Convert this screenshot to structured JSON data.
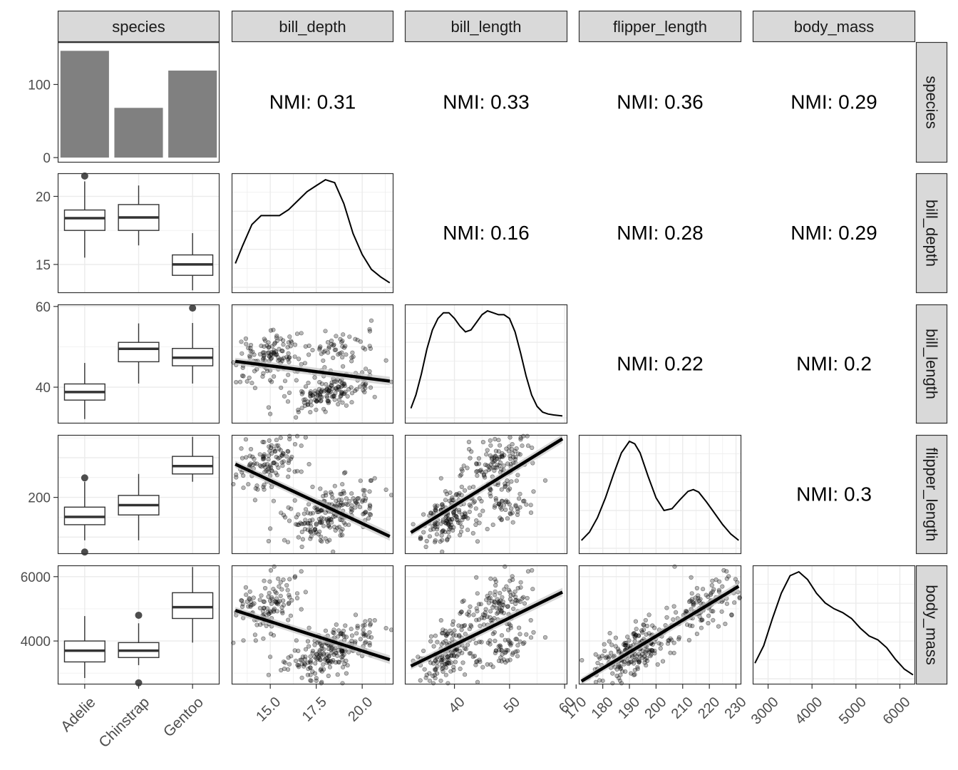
{
  "chart_data": {
    "type": "pairs_matrix",
    "variables": [
      "species",
      "bill_depth",
      "bill_length",
      "flipper_length",
      "body_mass"
    ],
    "species_counts": {
      "type": "bar",
      "categories": [
        "Adelie",
        "Chinstrap",
        "Gentoo"
      ],
      "values": [
        146,
        68,
        119
      ],
      "ylim": [
        0,
        158
      ],
      "yticks": [
        0,
        100
      ]
    },
    "axes": {
      "bill_depth": {
        "range": [
          12.9,
          21.7
        ],
        "ticks": [
          15.0,
          17.5,
          20.0
        ],
        "tick_labels": [
          "15.0",
          "17.5",
          "20.0"
        ],
        "row_ticks": [
          15,
          20
        ],
        "row_tick_labels": [
          "15",
          "20"
        ]
      },
      "bill_length": {
        "range": [
          31.0,
          60.5
        ],
        "ticks": [
          40,
          50,
          60
        ],
        "tick_labels": [
          "40",
          "50",
          "60"
        ],
        "row_ticks": [
          40,
          60
        ],
        "row_tick_labels": [
          "40",
          "60"
        ]
      },
      "flipper_length": {
        "range": [
          171,
          232
        ],
        "ticks": [
          170,
          180,
          190,
          200,
          210,
          220,
          230
        ],
        "tick_labels": [
          "170",
          "180",
          "190",
          "200",
          "210",
          "220",
          "230"
        ],
        "row_ticks": [
          200
        ],
        "row_tick_labels": [
          "200"
        ]
      },
      "body_mass": {
        "range": [
          2650,
          6350
        ],
        "ticks": [
          3000,
          4000,
          5000,
          6000
        ],
        "tick_labels": [
          "3000",
          "4000",
          "5000",
          "6000"
        ],
        "row_ticks": [
          4000,
          6000
        ],
        "row_tick_labels": [
          "4000",
          "6000"
        ]
      }
    },
    "boxplots": {
      "bill_depth": [
        {
          "species": "Adelie",
          "min": 15.5,
          "q1": 17.5,
          "median": 18.4,
          "q3": 19.0,
          "max": 21.1,
          "outliers": [
            21.5
          ]
        },
        {
          "species": "Chinstrap",
          "min": 16.4,
          "q1": 17.5,
          "median": 18.45,
          "q3": 19.4,
          "max": 20.8,
          "outliers": []
        },
        {
          "species": "Gentoo",
          "min": 13.1,
          "q1": 14.2,
          "median": 15.0,
          "q3": 15.7,
          "max": 17.3,
          "outliers": []
        }
      ],
      "bill_length": [
        {
          "species": "Adelie",
          "min": 32.1,
          "q1": 36.8,
          "median": 38.8,
          "q3": 40.8,
          "max": 46.0,
          "outliers": []
        },
        {
          "species": "Chinstrap",
          "min": 40.9,
          "q1": 46.3,
          "median": 49.5,
          "q3": 51.1,
          "max": 55.8,
          "outliers": []
        },
        {
          "species": "Gentoo",
          "min": 40.9,
          "q1": 45.3,
          "median": 47.3,
          "q3": 49.6,
          "max": 55.9,
          "outliers": [
            59.6
          ]
        }
      ],
      "flipper_length": [
        {
          "species": "Adelie",
          "min": 178,
          "q1": 186,
          "median": 190,
          "q3": 195,
          "max": 208,
          "outliers": [
            210,
            172
          ]
        },
        {
          "species": "Chinstrap",
          "min": 178,
          "q1": 191,
          "median": 196,
          "q3": 201,
          "max": 212,
          "outliers": []
        },
        {
          "species": "Gentoo",
          "min": 208,
          "q1": 212,
          "median": 216,
          "q3": 221,
          "max": 231,
          "outliers": []
        }
      ],
      "body_mass": [
        {
          "species": "Adelie",
          "min": 2850,
          "q1": 3350,
          "median": 3700,
          "q3": 4000,
          "max": 4775,
          "outliers": []
        },
        {
          "species": "Chinstrap",
          "min": 3250,
          "q1": 3487,
          "median": 3700,
          "q3": 3950,
          "max": 4550,
          "outliers": [
            4800,
            2700
          ]
        },
        {
          "species": "Gentoo",
          "min": 3950,
          "q1": 4700,
          "median": 5050,
          "q3": 5500,
          "max": 6300,
          "outliers": []
        }
      ]
    },
    "densities": {
      "bill_depth": {
        "x": [
          13.1,
          13.5,
          14.0,
          14.5,
          15.0,
          15.5,
          16.0,
          16.5,
          17.0,
          17.5,
          18.0,
          18.5,
          19.0,
          19.5,
          20.0,
          20.5,
          21.0,
          21.5
        ],
        "y": [
          0.08,
          0.14,
          0.21,
          0.24,
          0.24,
          0.24,
          0.26,
          0.29,
          0.32,
          0.34,
          0.36,
          0.35,
          0.28,
          0.18,
          0.11,
          0.06,
          0.035,
          0.015
        ]
      },
      "bill_length": {
        "x": [
          32.1,
          33.0,
          34.0,
          35.0,
          36.0,
          37.0,
          38.0,
          39.0,
          40.0,
          41.0,
          42.0,
          43.0,
          44.0,
          45.0,
          46.0,
          47.0,
          48.0,
          49.0,
          50.0,
          51.0,
          52.0,
          53.0,
          54.0,
          55.0,
          56.0,
          57.0,
          58.0,
          59.6
        ],
        "y": [
          0.005,
          0.012,
          0.023,
          0.036,
          0.046,
          0.052,
          0.055,
          0.055,
          0.052,
          0.048,
          0.045,
          0.046,
          0.05,
          0.054,
          0.056,
          0.055,
          0.054,
          0.054,
          0.052,
          0.045,
          0.034,
          0.022,
          0.012,
          0.006,
          0.003,
          0.002,
          0.0015,
          0.001
        ]
      },
      "flipper_length": {
        "x": [
          172,
          175,
          178,
          181,
          184,
          187,
          190,
          192,
          194,
          197,
          200,
          203,
          206,
          209,
          212,
          214,
          216,
          219,
          222,
          225,
          228,
          231
        ],
        "y": [
          0.0022,
          0.0045,
          0.0085,
          0.014,
          0.0205,
          0.0265,
          0.0297,
          0.029,
          0.0265,
          0.02,
          0.014,
          0.0105,
          0.011,
          0.0135,
          0.0158,
          0.0163,
          0.0156,
          0.0128,
          0.0097,
          0.0066,
          0.004,
          0.0022
        ]
      },
      "body_mass": {
        "x": [
          2700,
          2900,
          3100,
          3300,
          3500,
          3700,
          3900,
          4100,
          4300,
          4500,
          4700,
          4900,
          5100,
          5300,
          5500,
          5700,
          5900,
          6100,
          6300
        ],
        "y": [
          8e-05,
          0.00017,
          0.00031,
          0.00044,
          0.00053,
          0.00055,
          0.00051,
          0.00044,
          0.00039,
          0.00036,
          0.00034,
          0.00031,
          0.00026,
          0.00022,
          0.0002,
          0.00016,
          0.0001,
          5e-05,
          2e-05
        ]
      }
    },
    "regression_lines": {
      "bill_depth_vs_bill_length": {
        "x_range": [
          13.1,
          21.5
        ],
        "y_range": [
          46.4,
          41.5
        ]
      },
      "bill_depth_vs_flipper_length": {
        "x_range": [
          13.1,
          21.5
        ],
        "y_range": [
          217,
          180
        ]
      },
      "bill_length_vs_flipper_length": {
        "x_range": [
          32.1,
          59.6
        ],
        "y_range": [
          182,
          230
        ]
      },
      "bill_depth_vs_body_mass": {
        "x_range": [
          13.1,
          21.5
        ],
        "y_range": [
          4950,
          3420
        ]
      },
      "bill_length_vs_body_mass": {
        "x_range": [
          32.1,
          59.6
        ],
        "y_range": [
          3220,
          5520
        ]
      },
      "flipper_length_vs_body_mass": {
        "x_range": [
          172,
          231
        ],
        "y_range": [
          2750,
          5700
        ]
      }
    },
    "nmi": {
      "species_bill_depth": "NMI: 0.31",
      "species_bill_length": "NMI: 0.33",
      "species_flipper_length": "NMI: 0.36",
      "species_body_mass": "NMI: 0.29",
      "bill_depth_bill_length": "NMI: 0.16",
      "bill_depth_flipper_length": "NMI: 0.28",
      "bill_depth_body_mass": "NMI: 0.29",
      "bill_length_flipper_length": "NMI: 0.22",
      "bill_length_body_mass": "NMI: 0.2",
      "flipper_length_body_mass": "NMI: 0.3"
    },
    "scatter_points_per_panel": 333,
    "grid": true,
    "colors": {
      "strip_fill": "#d9d9d9",
      "bar": "#808080",
      "point": "#000000",
      "line": "#000000",
      "band": "#c8c8c8"
    }
  }
}
